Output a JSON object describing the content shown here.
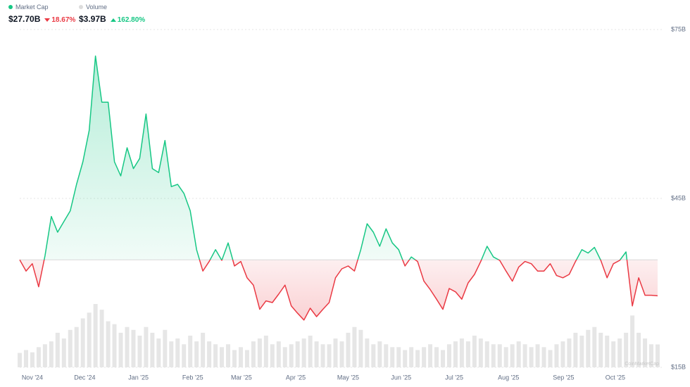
{
  "chart_data": {
    "type": "line",
    "summary": [
      {
        "name": "Market Cap",
        "color": "#16c784",
        "value": "$27.70B",
        "change": "18.67%",
        "direction": "down"
      },
      {
        "name": "Volume",
        "color": "#dcdcdc",
        "value": "$3.97B",
        "change": "162.80%",
        "direction": "up"
      }
    ],
    "up_color": "#16c784",
    "down_color": "#ea3943",
    "series": [
      {
        "name": "Market Cap",
        "values": [
          34.1,
          32.1,
          33.4,
          29.3,
          34.8,
          41.8,
          39.0,
          40.9,
          42.8,
          47.5,
          51.5,
          57.1,
          70.3,
          62.1,
          62.1,
          51.5,
          49.0,
          54.0,
          50.3,
          52.1,
          60.0,
          50.3,
          49.6,
          55.3,
          47.1,
          47.5,
          45.9,
          42.8,
          35.9,
          32.1,
          33.8,
          35.9,
          34.0,
          37.1,
          33.0,
          33.8,
          30.9,
          29.6,
          25.3,
          26.8,
          26.5,
          28.0,
          29.6,
          25.9,
          24.6,
          23.4,
          25.5,
          24.0,
          25.3,
          26.5,
          30.9,
          32.5,
          33.0,
          32.1,
          35.9,
          40.5,
          39.0,
          36.5,
          39.6,
          37.1,
          35.9,
          33.0,
          34.6,
          33.8,
          30.3,
          28.8,
          27.1,
          25.3,
          29.0,
          28.4,
          27.1,
          30.0,
          31.5,
          33.8,
          36.5,
          34.6,
          34.0,
          32.1,
          30.3,
          32.8,
          33.8,
          33.4,
          32.1,
          32.1,
          33.4,
          31.3,
          30.9,
          31.5,
          33.8,
          35.9,
          35.3,
          36.3,
          34.0,
          30.9,
          33.4,
          34.0,
          35.5,
          25.9,
          30.9,
          27.8,
          27.8,
          27.7
        ]
      },
      {
        "name": "Volume",
        "color": "#e6e6e6",
        "values": [
          2.5,
          3.0,
          2.6,
          3.5,
          4.0,
          4.5,
          6.0,
          5.0,
          6.5,
          7.0,
          8.5,
          9.5,
          11.0,
          10.0,
          8.0,
          7.5,
          6.0,
          7.0,
          6.5,
          5.5,
          7.0,
          6.0,
          5.0,
          6.5,
          4.5,
          5.0,
          4.0,
          5.5,
          4.5,
          6.0,
          4.5,
          4.0,
          3.5,
          4.0,
          3.0,
          3.5,
          3.0,
          4.5,
          5.0,
          5.5,
          4.0,
          4.5,
          3.5,
          4.0,
          4.5,
          5.0,
          5.5,
          4.5,
          4.0,
          4.0,
          5.0,
          4.5,
          6.0,
          7.0,
          6.5,
          5.0,
          4.0,
          4.5,
          4.0,
          3.5,
          3.5,
          3.0,
          3.5,
          3.0,
          3.5,
          4.0,
          3.5,
          3.0,
          4.0,
          4.5,
          5.0,
          4.5,
          5.5,
          5.0,
          4.5,
          4.0,
          4.0,
          3.5,
          4.0,
          4.5,
          4.0,
          3.5,
          4.0,
          3.5,
          3.0,
          4.0,
          4.5,
          5.0,
          6.0,
          5.5,
          6.5,
          7.0,
          6.0,
          5.5,
          4.5,
          5.0,
          6.0,
          9.0,
          6.0,
          5.0,
          4.0,
          3.97
        ]
      }
    ],
    "xlim": [
      0,
      101
    ],
    "xticks": [
      {
        "value": 2.0,
        "label": "Nov '24"
      },
      {
        "value": 10.3,
        "label": "Dec '24"
      },
      {
        "value": 18.8,
        "label": "Jan '25"
      },
      {
        "value": 27.4,
        "label": "Feb '25"
      },
      {
        "value": 35.1,
        "label": "Mar '25"
      },
      {
        "value": 43.7,
        "label": "Apr '25"
      },
      {
        "value": 52.0,
        "label": "May '25"
      },
      {
        "value": 60.4,
        "label": "Jun '25"
      },
      {
        "value": 68.8,
        "label": "Jul '25"
      },
      {
        "value": 77.4,
        "label": "Aug '25"
      },
      {
        "value": 86.1,
        "label": "Sep '25"
      },
      {
        "value": 94.3,
        "label": "Oct '25"
      }
    ],
    "ylim": [
      15,
      75
    ],
    "yticks": [
      {
        "value": 15,
        "label": "$15B"
      },
      {
        "value": 45,
        "label": "$45B"
      },
      {
        "value": 75,
        "label": "$75B"
      }
    ],
    "grid": true,
    "watermark": "CoinMarketCap"
  }
}
